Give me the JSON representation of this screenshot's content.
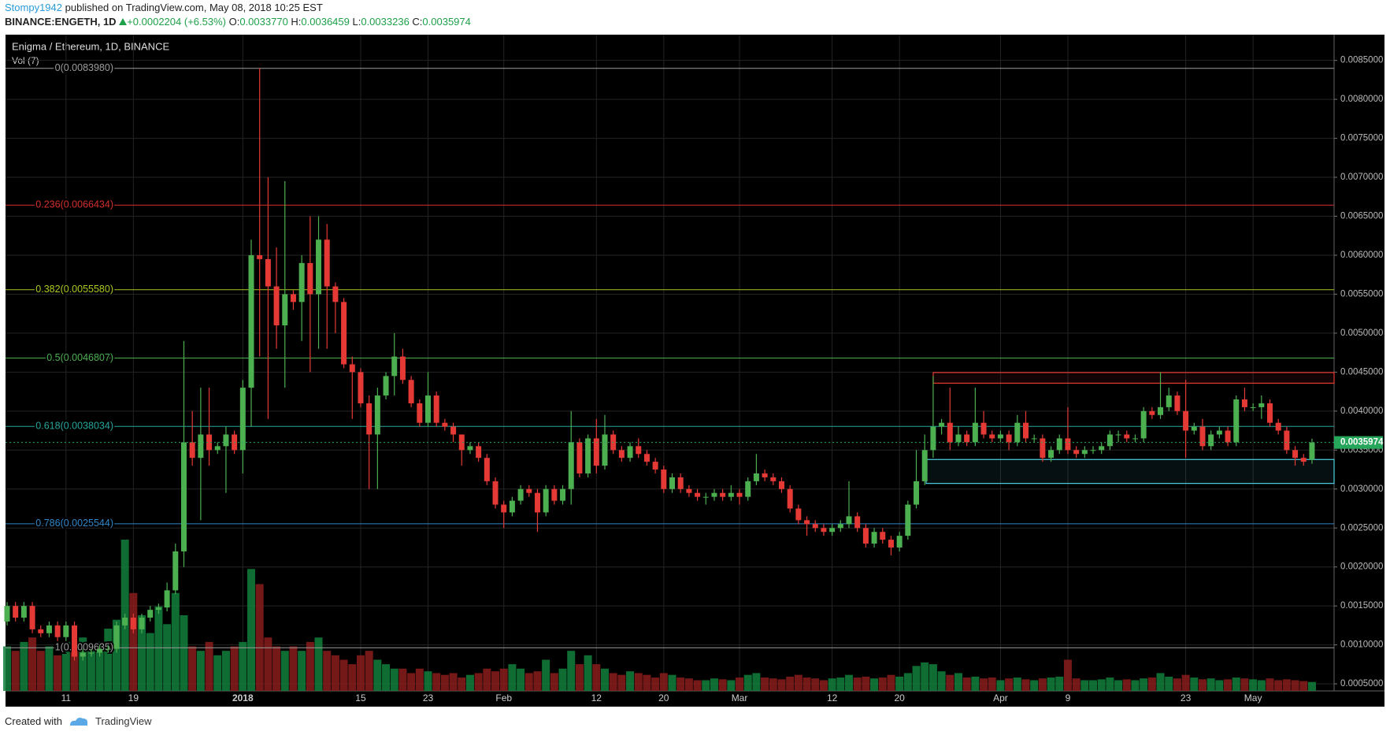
{
  "header": {
    "user": "Stompy1942",
    "published": "published on TradingView.com, May 08, 2018 10:25 EST",
    "symbol": "BINANCE:ENGETH, 1D",
    "change": "+0.0002204 (+6.53%)",
    "ohlc": [
      {
        "key": "O:",
        "value": "0.0033770"
      },
      {
        "key": "H:",
        "value": "0.0036459"
      },
      {
        "key": "L:",
        "value": "0.0033236"
      },
      {
        "key": "C:",
        "value": "0.0035974"
      }
    ]
  },
  "chart_data": {
    "type": "candlestick",
    "title": "Enigma / Ethereum, 1D, BINANCE",
    "up_color": "#4caf50",
    "down_color": "#e53935",
    "grid": true,
    "categories": [
      null,
      null,
      null,
      null,
      null,
      null,
      null,
      "11",
      null,
      null,
      null,
      null,
      null,
      null,
      null,
      "19",
      null,
      null,
      null,
      null,
      null,
      null,
      null,
      null,
      null,
      null,
      null,
      null,
      "2018",
      null,
      null,
      null,
      null,
      null,
      null,
      null,
      null,
      null,
      null,
      null,
      null,
      null,
      "15",
      null,
      null,
      null,
      null,
      null,
      null,
      null,
      "23",
      null,
      null,
      null,
      null,
      null,
      null,
      null,
      null,
      "Feb",
      null,
      null,
      null,
      null,
      null,
      null,
      null,
      null,
      null,
      null,
      "12",
      null,
      null,
      null,
      null,
      null,
      null,
      null,
      "20",
      null,
      null,
      null,
      null,
      null,
      null,
      null,
      null,
      "Mar",
      null,
      null,
      null,
      null,
      null,
      null,
      null,
      null,
      null,
      null,
      "12",
      null,
      null,
      null,
      null,
      null,
      null,
      null,
      "20",
      null,
      null,
      null,
      null,
      null,
      null,
      null,
      null,
      null,
      null,
      null,
      "Apr",
      null,
      null,
      null,
      null,
      null,
      null,
      null,
      "9",
      null,
      null,
      null,
      null,
      null,
      null,
      null,
      null,
      null,
      null,
      null,
      null,
      null,
      "23",
      null,
      null,
      null,
      null,
      null,
      null,
      null,
      "May",
      null,
      null,
      null,
      null,
      null,
      null,
      null
    ],
    "ohlc": [
      [
        0.0013,
        0.00155,
        0.00125,
        0.0015
      ],
      [
        0.0015,
        0.00155,
        0.0013,
        0.00135
      ],
      [
        0.00135,
        0.00155,
        0.0013,
        0.0015
      ],
      [
        0.0015,
        0.00155,
        0.00115,
        0.0012
      ],
      [
        0.0012,
        0.00125,
        0.0011,
        0.00115
      ],
      [
        0.00115,
        0.0013,
        0.0011,
        0.00125
      ],
      [
        0.00125,
        0.0013,
        0.00105,
        0.0011
      ],
      [
        0.0011,
        0.0013,
        0.00105,
        0.00125
      ],
      [
        0.00125,
        0.0013,
        0.0008,
        0.00085
      ],
      [
        0.00085,
        0.00095,
        0.0008,
        0.0009
      ],
      [
        0.0009,
        0.00095,
        0.00085,
        0.0009
      ],
      [
        0.0009,
        0.001,
        0.00085,
        0.00095
      ],
      [
        0.00095,
        0.001,
        0.0009,
        0.00095
      ],
      [
        0.00095,
        0.0013,
        0.0009,
        0.00125
      ],
      [
        0.00125,
        0.0014,
        0.0012,
        0.00135
      ],
      [
        0.00135,
        0.0014,
        0.00115,
        0.0012
      ],
      [
        0.0012,
        0.0014,
        0.00115,
        0.00135
      ],
      [
        0.00135,
        0.0015,
        0.0013,
        0.00145
      ],
      [
        0.00145,
        0.00153,
        0.0014,
        0.00148
      ],
      [
        0.00148,
        0.0018,
        0.00143,
        0.0017
      ],
      [
        0.0017,
        0.0023,
        0.00165,
        0.0022
      ],
      [
        0.0022,
        0.0049,
        0.002,
        0.0036
      ],
      [
        0.0036,
        0.004,
        0.0033,
        0.0034
      ],
      [
        0.0034,
        0.0043,
        0.0026,
        0.0037
      ],
      [
        0.0037,
        0.0043,
        0.0033,
        0.0035
      ],
      [
        0.0035,
        0.0036,
        0.00345,
        0.00355
      ],
      [
        0.00355,
        0.0038,
        0.00295,
        0.0037
      ],
      [
        0.0037,
        0.00375,
        0.00345,
        0.0035
      ],
      [
        0.0035,
        0.0044,
        0.0032,
        0.0043
      ],
      [
        0.0043,
        0.0062,
        0.0038,
        0.006
      ],
      [
        0.006,
        0.0084,
        0.0047,
        0.00595
      ],
      [
        0.00595,
        0.007,
        0.0039,
        0.0056
      ],
      [
        0.0056,
        0.0061,
        0.0048,
        0.0051
      ],
      [
        0.0051,
        0.00695,
        0.0043,
        0.0055
      ],
      [
        0.0055,
        0.00555,
        0.0053,
        0.0054
      ],
      [
        0.0054,
        0.006,
        0.0049,
        0.0059
      ],
      [
        0.0059,
        0.0065,
        0.0045,
        0.0055
      ],
      [
        0.0055,
        0.0065,
        0.0048,
        0.0062
      ],
      [
        0.0062,
        0.0064,
        0.0048,
        0.0056
      ],
      [
        0.0056,
        0.00565,
        0.005,
        0.0054
      ],
      [
        0.0054,
        0.00545,
        0.00455,
        0.0046
      ],
      [
        0.0046,
        0.0047,
        0.0039,
        0.0045
      ],
      [
        0.0045,
        0.00455,
        0.00405,
        0.0041
      ],
      [
        0.0041,
        0.0042,
        0.003,
        0.0037
      ],
      [
        0.0037,
        0.0043,
        0.003,
        0.0042
      ],
      [
        0.0042,
        0.0045,
        0.00415,
        0.00445
      ],
      [
        0.00445,
        0.005,
        0.0042,
        0.0047
      ],
      [
        0.0047,
        0.0048,
        0.00435,
        0.0044
      ],
      [
        0.0044,
        0.00445,
        0.00405,
        0.0041
      ],
      [
        0.0041,
        0.00415,
        0.0038,
        0.00385
      ],
      [
        0.00385,
        0.0045,
        0.0038,
        0.0042
      ],
      [
        0.0042,
        0.00425,
        0.0038,
        0.00385
      ],
      [
        0.00385,
        0.0039,
        0.00375,
        0.0038
      ],
      [
        0.0038,
        0.00385,
        0.0036,
        0.0037
      ],
      [
        0.0037,
        0.0037,
        0.0033,
        0.0035
      ],
      [
        0.0035,
        0.0036,
        0.00345,
        0.00355
      ],
      [
        0.00355,
        0.0036,
        0.00335,
        0.0034
      ],
      [
        0.0034,
        0.00345,
        0.00305,
        0.0031
      ],
      [
        0.0031,
        0.00315,
        0.00275,
        0.0028
      ],
      [
        0.0028,
        0.00285,
        0.0025,
        0.0027
      ],
      [
        0.0027,
        0.0029,
        0.00265,
        0.00285
      ],
      [
        0.00285,
        0.00305,
        0.0028,
        0.003
      ],
      [
        0.003,
        0.00305,
        0.0029,
        0.00295
      ],
      [
        0.00295,
        0.003,
        0.00245,
        0.0027
      ],
      [
        0.0027,
        0.00305,
        0.00265,
        0.003
      ],
      [
        0.003,
        0.00305,
        0.0028,
        0.00285
      ],
      [
        0.00285,
        0.00305,
        0.0028,
        0.003
      ],
      [
        0.003,
        0.004,
        0.0028,
        0.0036
      ],
      [
        0.0036,
        0.00365,
        0.00315,
        0.0032
      ],
      [
        0.0032,
        0.0037,
        0.00315,
        0.00365
      ],
      [
        0.00365,
        0.0039,
        0.0032,
        0.0033
      ],
      [
        0.0033,
        0.00395,
        0.00325,
        0.0037
      ],
      [
        0.0037,
        0.00375,
        0.00345,
        0.0035
      ],
      [
        0.0035,
        0.00355,
        0.00335,
        0.0034
      ],
      [
        0.0034,
        0.0036,
        0.00335,
        0.00355
      ],
      [
        0.00355,
        0.00365,
        0.0034,
        0.00345
      ],
      [
        0.00345,
        0.0035,
        0.0033,
        0.00335
      ],
      [
        0.00335,
        0.0034,
        0.0032,
        0.00325
      ],
      [
        0.00325,
        0.0033,
        0.00295,
        0.003
      ],
      [
        0.003,
        0.0032,
        0.00295,
        0.00315
      ],
      [
        0.00315,
        0.0032,
        0.00295,
        0.003
      ],
      [
        0.003,
        0.00305,
        0.0029,
        0.00295
      ],
      [
        0.00295,
        0.003,
        0.00285,
        0.0029
      ],
      [
        0.0029,
        0.00295,
        0.0028,
        0.0029
      ],
      [
        0.0029,
        0.003,
        0.00285,
        0.00295
      ],
      [
        0.00295,
        0.003,
        0.00285,
        0.0029
      ],
      [
        0.0029,
        0.00305,
        0.00285,
        0.00295
      ],
      [
        0.00295,
        0.003,
        0.0028,
        0.0029
      ],
      [
        0.0029,
        0.00315,
        0.00285,
        0.0031
      ],
      [
        0.0031,
        0.00345,
        0.00305,
        0.0032
      ],
      [
        0.0032,
        0.00325,
        0.0031,
        0.00315
      ],
      [
        0.00315,
        0.0032,
        0.00305,
        0.0031
      ],
      [
        0.0031,
        0.00315,
        0.00295,
        0.003
      ],
      [
        0.003,
        0.00305,
        0.0027,
        0.00275
      ],
      [
        0.00275,
        0.0028,
        0.00255,
        0.0026
      ],
      [
        0.0026,
        0.00265,
        0.0024,
        0.00255
      ],
      [
        0.00255,
        0.0026,
        0.00245,
        0.0025
      ],
      [
        0.0025,
        0.00255,
        0.0024,
        0.00245
      ],
      [
        0.00245,
        0.00255,
        0.0024,
        0.0025
      ],
      [
        0.0025,
        0.0026,
        0.00245,
        0.00255
      ],
      [
        0.00255,
        0.0031,
        0.0025,
        0.00265
      ],
      [
        0.00265,
        0.0027,
        0.00245,
        0.0025
      ],
      [
        0.0025,
        0.00255,
        0.00225,
        0.0023
      ],
      [
        0.0023,
        0.0025,
        0.00225,
        0.00245
      ],
      [
        0.00245,
        0.0025,
        0.0023,
        0.00235
      ],
      [
        0.00235,
        0.0024,
        0.00215,
        0.00225
      ],
      [
        0.00225,
        0.00245,
        0.0022,
        0.0024
      ],
      [
        0.0024,
        0.00285,
        0.00235,
        0.0028
      ],
      [
        0.0028,
        0.0035,
        0.00275,
        0.0031
      ],
      [
        0.0031,
        0.0037,
        0.00305,
        0.0035
      ],
      [
        0.0035,
        0.00445,
        0.0034,
        0.0038
      ],
      [
        0.0038,
        0.0039,
        0.0037,
        0.00385
      ],
      [
        0.00385,
        0.0043,
        0.0035,
        0.0036
      ],
      [
        0.0036,
        0.0038,
        0.00355,
        0.0037
      ],
      [
        0.0037,
        0.00375,
        0.00355,
        0.0036
      ],
      [
        0.0036,
        0.0043,
        0.00355,
        0.00385
      ],
      [
        0.00385,
        0.004,
        0.00365,
        0.0037
      ],
      [
        0.0037,
        0.00375,
        0.0036,
        0.00365
      ],
      [
        0.00365,
        0.00375,
        0.0036,
        0.0037
      ],
      [
        0.0037,
        0.00375,
        0.0035,
        0.0036
      ],
      [
        0.0036,
        0.00395,
        0.00355,
        0.00385
      ],
      [
        0.00385,
        0.004,
        0.0036,
        0.00365
      ],
      [
        0.00365,
        0.0037,
        0.0036,
        0.00365
      ],
      [
        0.00365,
        0.0037,
        0.00335,
        0.0034
      ],
      [
        0.0034,
        0.00355,
        0.00335,
        0.0035
      ],
      [
        0.0035,
        0.0037,
        0.00345,
        0.00365
      ],
      [
        0.00365,
        0.00405,
        0.00345,
        0.0035
      ],
      [
        0.0035,
        0.00355,
        0.0034,
        0.00345
      ],
      [
        0.00345,
        0.00355,
        0.0034,
        0.0035
      ],
      [
        0.0035,
        0.00355,
        0.00345,
        0.0035
      ],
      [
        0.0035,
        0.0036,
        0.00345,
        0.00355
      ],
      [
        0.00355,
        0.00375,
        0.0035,
        0.0037
      ],
      [
        0.0037,
        0.00375,
        0.0036,
        0.0037
      ],
      [
        0.0037,
        0.00375,
        0.0036,
        0.00365
      ],
      [
        0.00365,
        0.0037,
        0.0036,
        0.00365
      ],
      [
        0.00365,
        0.00405,
        0.0036,
        0.004
      ],
      [
        0.004,
        0.00405,
        0.0039,
        0.00395
      ],
      [
        0.00395,
        0.0045,
        0.0039,
        0.00405
      ],
      [
        0.00405,
        0.0043,
        0.004,
        0.0042
      ],
      [
        0.0042,
        0.00425,
        0.00395,
        0.004
      ],
      [
        0.004,
        0.0044,
        0.0034,
        0.00375
      ],
      [
        0.00375,
        0.00385,
        0.0037,
        0.0038
      ],
      [
        0.0038,
        0.0039,
        0.0035,
        0.00355
      ],
      [
        0.00355,
        0.00375,
        0.0035,
        0.0037
      ],
      [
        0.0037,
        0.0038,
        0.00365,
        0.00375
      ],
      [
        0.00375,
        0.0038,
        0.00355,
        0.0036
      ],
      [
        0.0036,
        0.0042,
        0.00355,
        0.00415
      ],
      [
        0.00415,
        0.0043,
        0.004,
        0.00405
      ],
      [
        0.00405,
        0.0041,
        0.004,
        0.00405
      ],
      [
        0.00405,
        0.0042,
        0.0039,
        0.0041
      ],
      [
        0.0041,
        0.00415,
        0.0038,
        0.00385
      ],
      [
        0.00385,
        0.0039,
        0.0037,
        0.00375
      ],
      [
        0.00375,
        0.0038,
        0.00345,
        0.0035
      ],
      [
        0.0035,
        0.00355,
        0.0033,
        0.0034
      ],
      [
        0.0034,
        0.00345,
        0.0033,
        0.00335
      ],
      [
        0.003377,
        0.0036459,
        0.0033236,
        0.0035974
      ]
    ],
    "volume": {
      "name": "Vol (7)",
      "values": [
        50,
        45,
        55,
        60,
        45,
        50,
        40,
        55,
        45,
        60,
        50,
        55,
        70,
        80,
        170,
        110,
        85,
        65,
        95,
        75,
        110,
        85,
        50,
        45,
        55,
        40,
        45,
        50,
        55,
        137,
        120,
        60,
        50,
        45,
        50,
        45,
        55,
        60,
        45,
        40,
        35,
        30,
        40,
        45,
        35,
        30,
        25,
        25,
        20,
        25,
        22,
        20,
        18,
        20,
        15,
        18,
        20,
        25,
        22,
        25,
        30,
        25,
        20,
        22,
        35,
        20,
        25,
        45,
        30,
        40,
        30,
        25,
        20,
        18,
        22,
        20,
        18,
        15,
        20,
        18,
        15,
        14,
        12,
        12,
        14,
        13,
        12,
        15,
        18,
        20,
        15,
        14,
        13,
        16,
        18,
        15,
        14,
        12,
        14,
        15,
        18,
        15,
        16,
        14,
        15,
        18,
        16,
        20,
        28,
        32,
        30,
        22,
        18,
        20,
        15,
        16,
        14,
        15,
        12,
        14,
        15,
        13,
        12,
        14,
        15,
        16,
        35,
        14,
        12,
        12,
        13,
        15,
        12,
        13,
        12,
        14,
        15,
        20,
        16,
        14,
        18,
        15,
        13,
        14,
        12,
        13,
        15,
        14,
        13,
        12,
        14,
        12,
        13,
        12,
        11,
        10
      ]
    },
    "ylim": [
      0.00041,
      0.00883
    ],
    "yticks": [
      {
        "value": 0.0085,
        "label": "0.0085000"
      },
      {
        "value": 0.008,
        "label": "0.0080000"
      },
      {
        "value": 0.0075,
        "label": "0.0075000"
      },
      {
        "value": 0.007,
        "label": "0.0070000"
      },
      {
        "value": 0.0065,
        "label": "0.0065000"
      },
      {
        "value": 0.006,
        "label": "0.0060000"
      },
      {
        "value": 0.0055,
        "label": "0.0055000"
      },
      {
        "value": 0.005,
        "label": "0.0050000"
      },
      {
        "value": 0.0045,
        "label": "0.0045000"
      },
      {
        "value": 0.004,
        "label": "0.0040000"
      },
      {
        "value": 0.0035,
        "label": "0.0035000"
      },
      {
        "value": 0.003,
        "label": "0.0030000"
      },
      {
        "value": 0.0025,
        "label": "0.0025000"
      },
      {
        "value": 0.002,
        "label": "0.0020000"
      },
      {
        "value": 0.0015,
        "label": "0.0015000"
      },
      {
        "value": 0.001,
        "label": "0.0010000"
      },
      {
        "value": 0.0005,
        "label": "0.0005000"
      }
    ],
    "fib_levels": [
      {
        "label": "0(0.0083980)",
        "value": 0.008398,
        "color": "#9e9e9e"
      },
      {
        "label": "0.236(0.0066434)",
        "value": 0.0066434,
        "color": "#d32f2f"
      },
      {
        "label": "0.382(0.0055580)",
        "value": 0.005558,
        "color": "#aec81e"
      },
      {
        "label": "0.5(0.0046807)",
        "value": 0.0046807,
        "color": "#4caf50"
      },
      {
        "label": "0.618(0.0038034)",
        "value": 0.0038034,
        "color": "#26a69a"
      },
      {
        "label": "0.786(0.0025544)",
        "value": 0.0025544,
        "color": "#2f86c8"
      },
      {
        "label": "1(0.0009635)",
        "value": 0.0009635,
        "color": "#9e9e9e"
      }
    ],
    "zones": [
      {
        "top": 0.004495,
        "bottom": 0.004358,
        "color": "#e53935"
      },
      {
        "top": 0.003379,
        "bottom": 0.003072,
        "color": "#4dd0e1"
      }
    ],
    "last_price_color": "#26a65b"
  }
}
